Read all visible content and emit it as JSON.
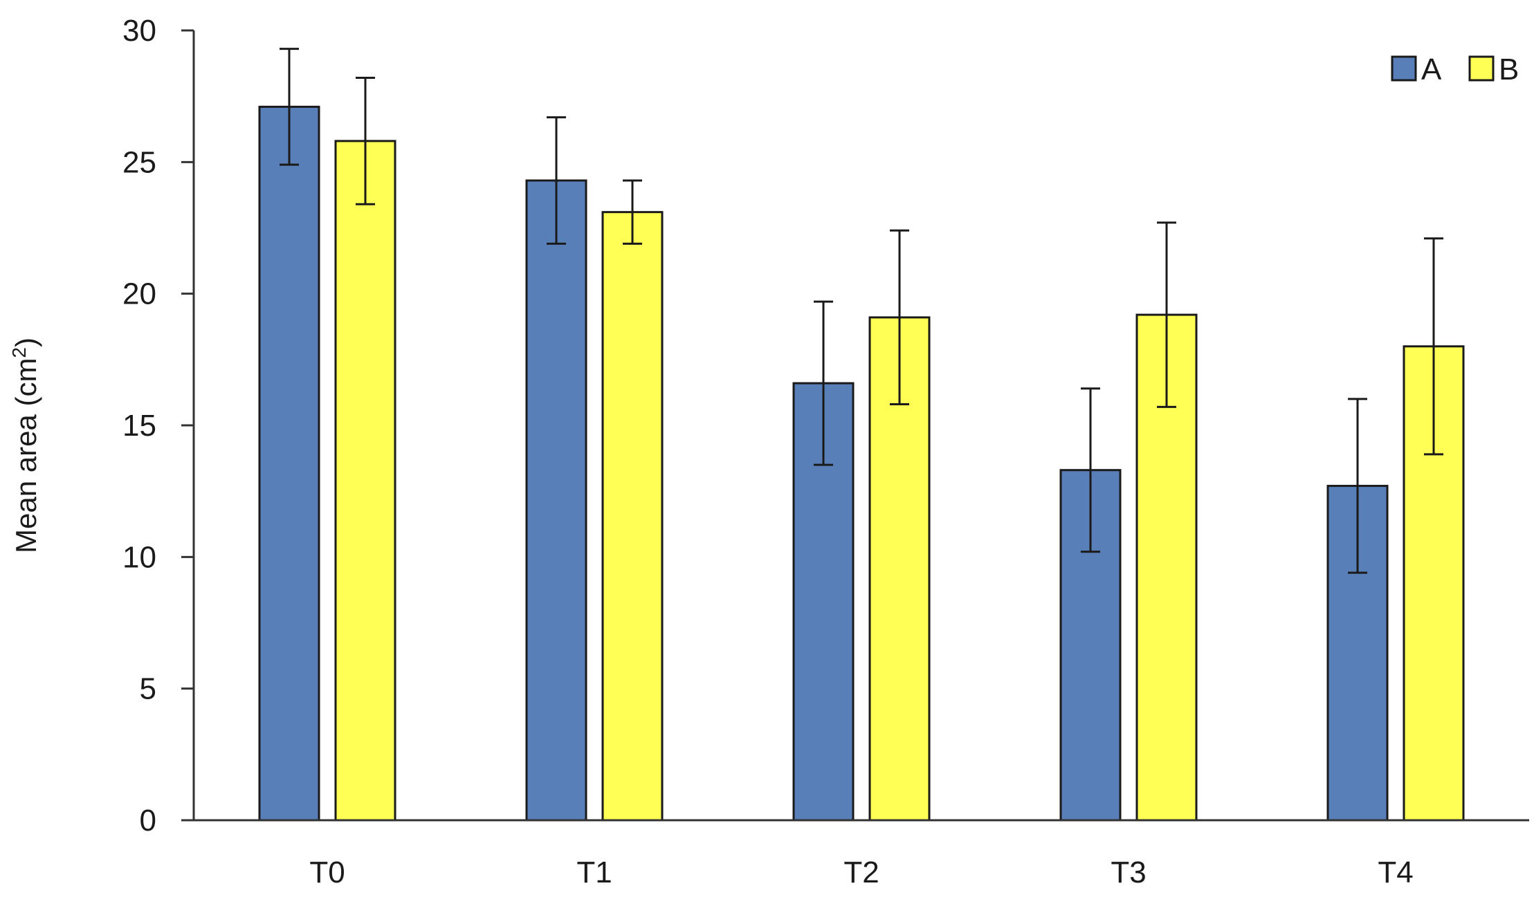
{
  "chart_data": {
    "type": "bar",
    "title": "",
    "xlabel": "",
    "ylabel": "Mean area (cm",
    "ylabel_superscript": "2",
    "ylabel_suffix": ")",
    "ylim": [
      0,
      30
    ],
    "yticks": [
      0,
      5,
      10,
      15,
      20,
      25,
      30
    ],
    "categories": [
      "T0",
      "T1",
      "T2",
      "T3",
      "T4"
    ],
    "series": [
      {
        "name": "A",
        "color": "#587fb8",
        "values": [
          27.1,
          24.3,
          16.6,
          13.3,
          12.7
        ],
        "error": [
          2.2,
          2.4,
          3.1,
          3.1,
          3.3
        ]
      },
      {
        "name": "B",
        "color": "#ffff55",
        "values": [
          25.8,
          23.1,
          19.1,
          19.2,
          18.0
        ],
        "error": [
          2.4,
          1.2,
          3.3,
          3.5,
          4.1
        ]
      }
    ],
    "legend": "top-right",
    "grid": false
  }
}
